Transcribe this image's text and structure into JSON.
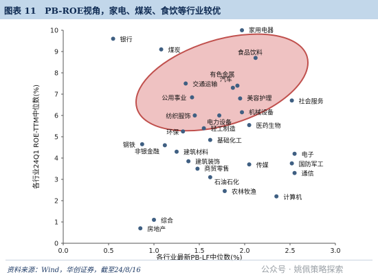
{
  "header": {
    "figure_label": "图表 11",
    "title": "PB-ROE视角，家电、煤炭、食饮等行业较优"
  },
  "source": "资料来源：Wind，华创证券，截至24/8/16",
  "watermark": "公众号 · 姚佩策略探索",
  "chart_data": {
    "type": "scatter",
    "xlabel": "各行业最新PB-LF中位数(%)",
    "ylabel": "各行业24Q1 ROE-TTM中位数(%)",
    "xlim": [
      0.0,
      3.0
    ],
    "ylim": [
      0,
      10
    ],
    "xticks": [
      "0.0",
      "0.5",
      "1.0",
      "1.5",
      "2.0",
      "2.5",
      "3.0"
    ],
    "yticks": [
      "0",
      "1",
      "2",
      "3",
      "4",
      "5",
      "6",
      "7",
      "8",
      "9",
      "10"
    ],
    "grid": false,
    "point_color": "#3f5f82",
    "highlight_color": "#c0504d",
    "highlight_ellipse": {
      "cx": 1.75,
      "cy": 7.55,
      "rx": 0.98,
      "ry": 2.0,
      "rotation_deg": -17
    },
    "points": [
      {
        "name": "银行",
        "x": 0.55,
        "y": 9.6
      },
      {
        "name": "煤炭",
        "x": 1.08,
        "y": 9.1
      },
      {
        "name": "家用电器",
        "x": 1.97,
        "y": 10.0
      },
      {
        "name": "食品饮料",
        "x": 2.12,
        "y": 8.7
      },
      {
        "name": "有色金属",
        "x": 1.92,
        "y": 7.4
      },
      {
        "name": "汽车",
        "x": 1.87,
        "y": 7.3
      },
      {
        "name": "交通运输",
        "x": 1.35,
        "y": 7.5
      },
      {
        "name": "公用事业",
        "x": 1.42,
        "y": 6.85
      },
      {
        "name": "美容护理",
        "x": 1.95,
        "y": 6.8
      },
      {
        "name": "社会服务",
        "x": 2.52,
        "y": 6.7
      },
      {
        "name": "纺织服饰",
        "x": 1.45,
        "y": 6.0
      },
      {
        "name": "电力设备",
        "x": 1.72,
        "y": 6.0
      },
      {
        "name": "机械设备",
        "x": 1.97,
        "y": 6.15
      },
      {
        "name": "轻工制造",
        "x": 1.55,
        "y": 5.4
      },
      {
        "name": "医药生物",
        "x": 2.05,
        "y": 5.55
      },
      {
        "name": "环保",
        "x": 1.32,
        "y": 5.25
      },
      {
        "name": "基础化工",
        "x": 1.62,
        "y": 4.85
      },
      {
        "name": "钢铁",
        "x": 0.87,
        "y": 4.65
      },
      {
        "name": "非银金融",
        "x": 1.12,
        "y": 4.6
      },
      {
        "name": "建筑材料",
        "x": 1.25,
        "y": 4.3
      },
      {
        "name": "电子",
        "x": 2.55,
        "y": 4.2
      },
      {
        "name": "建筑装饰",
        "x": 1.38,
        "y": 3.85
      },
      {
        "name": "国防军工",
        "x": 2.52,
        "y": 3.75
      },
      {
        "name": "传媒",
        "x": 2.05,
        "y": 3.7
      },
      {
        "name": "商贸零售",
        "x": 1.48,
        "y": 3.5
      },
      {
        "name": "通信",
        "x": 2.55,
        "y": 3.3
      },
      {
        "name": "石油石化",
        "x": 1.62,
        "y": 3.1
      },
      {
        "name": "农林牧渔",
        "x": 1.78,
        "y": 2.45
      },
      {
        "name": "计算机",
        "x": 2.35,
        "y": 2.2
      },
      {
        "name": "综合",
        "x": 1.0,
        "y": 1.1
      },
      {
        "name": "房地产",
        "x": 0.85,
        "y": 0.7
      }
    ]
  }
}
